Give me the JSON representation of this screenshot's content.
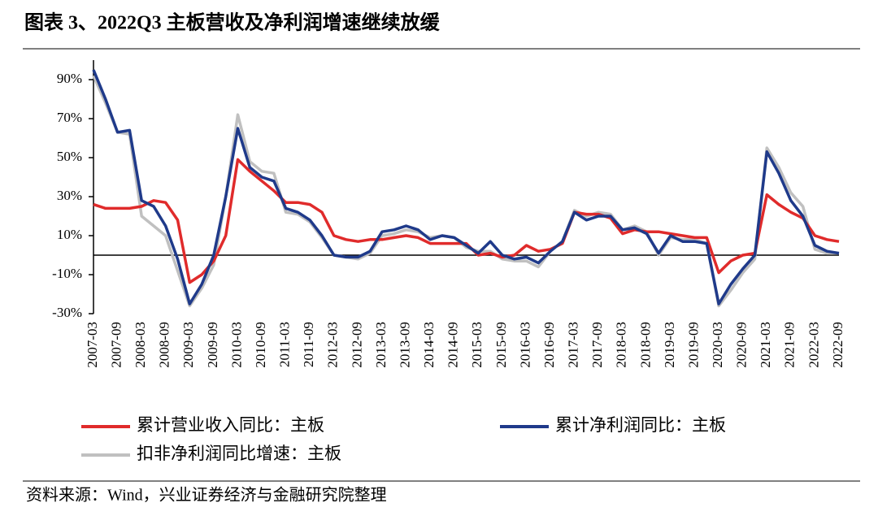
{
  "chart_data": {
    "type": "line",
    "title": "图表 3、2022Q3 主板营收及净利润增速继续放缓",
    "source": "资料来源：Wind，兴业证券经济与金融研究院整理",
    "categories": [
      "2007-03",
      null,
      "2007-09",
      null,
      "2008-03",
      null,
      "2008-09",
      null,
      "2009-03",
      null,
      "2009-09",
      null,
      "2010-03",
      null,
      "2010-09",
      null,
      "2011-03",
      null,
      "2011-09",
      null,
      "2012-03",
      null,
      "2012-09",
      null,
      "2013-03",
      null,
      "2013-09",
      null,
      "2014-03",
      null,
      "2014-09",
      null,
      "2015-03",
      null,
      "2015-09",
      null,
      "2016-03",
      null,
      "2016-09",
      null,
      "2017-03",
      null,
      "2017-09",
      null,
      "2018-03",
      null,
      "2018-09",
      null,
      "2019-03",
      null,
      "2019-09",
      null,
      "2020-03",
      null,
      "2020-09",
      null,
      "2021-03",
      null,
      "2021-09",
      null,
      "2022-03",
      null,
      "2022-09"
    ],
    "series": [
      {
        "name": "累计营业收入同比：主板",
        "color": "#e02b2b",
        "values": [
          26,
          24,
          24,
          24,
          25,
          28,
          27,
          18,
          -14,
          -10,
          -3,
          10,
          49,
          43,
          38,
          33,
          27,
          27,
          26,
          22,
          10,
          8,
          7,
          8,
          8,
          9,
          10,
          9,
          6,
          6,
          6,
          6,
          0,
          1,
          -1,
          0,
          5,
          2,
          3,
          6,
          22,
          21,
          21,
          19,
          11,
          13,
          12,
          12,
          11,
          10,
          9,
          9,
          -9,
          -3,
          0,
          1,
          31,
          26,
          22,
          19,
          10,
          8,
          7
        ]
      },
      {
        "name": "累计净利润同比：主板",
        "color": "#1f3a8a",
        "values": [
          95,
          80,
          63,
          64,
          28,
          25,
          15,
          -2,
          -25,
          -15,
          0,
          30,
          65,
          45,
          40,
          38,
          24,
          22,
          18,
          10,
          0,
          -1,
          -1,
          2,
          12,
          13,
          15,
          13,
          8,
          10,
          9,
          5,
          1,
          7,
          0,
          -2,
          -1,
          -4,
          2,
          7,
          22,
          18,
          20,
          20,
          13,
          14,
          11,
          1,
          10,
          7,
          7,
          6,
          -25,
          -15,
          -7,
          0,
          53,
          42,
          28,
          20,
          5,
          2,
          1
        ]
      },
      {
        "name": "扣非净利润同比增速：主板",
        "color": "#c0c0c0",
        "values": [
          92,
          78,
          63,
          62,
          20,
          15,
          10,
          -8,
          -26,
          -17,
          -5,
          30,
          72,
          48,
          43,
          42,
          22,
          21,
          17,
          9,
          0,
          -1,
          -2,
          1,
          10,
          11,
          13,
          12,
          9,
          10,
          9,
          4,
          2,
          2,
          -2,
          -3,
          -3,
          -6,
          2,
          7,
          23,
          20,
          22,
          21,
          13,
          15,
          12,
          0,
          9,
          8,
          8,
          6,
          -26,
          -18,
          -9,
          -2,
          55,
          45,
          32,
          25,
          3,
          1,
          1
        ]
      }
    ],
    "ylim": [
      -30,
      100
    ],
    "yticks": [
      {
        "value": -30,
        "label": "-30%"
      },
      {
        "value": -10,
        "label": "-10%"
      },
      {
        "value": 10,
        "label": "10%"
      },
      {
        "value": 30,
        "label": "30%"
      },
      {
        "value": 50,
        "label": "50%"
      },
      {
        "value": 70,
        "label": "70%"
      },
      {
        "value": 90,
        "label": "90%"
      }
    ]
  }
}
